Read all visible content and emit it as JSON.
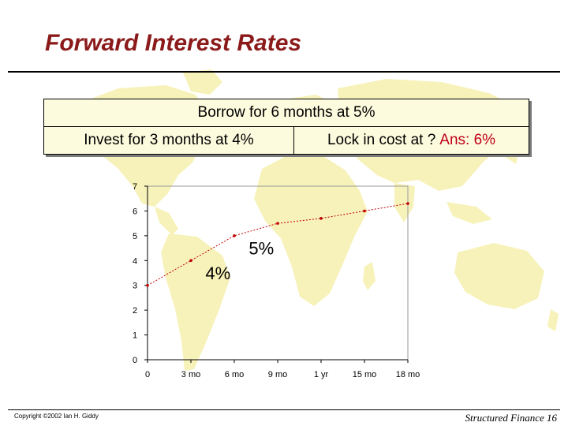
{
  "slide": {
    "title": "Forward Interest Rates",
    "borrow_text": "Borrow for 6 months at 5%",
    "invest_text": "Invest for 3 months at 4%",
    "lock_text": "Lock in cost at ?",
    "answer_text": "Ans: 6%",
    "copyright": "Copyright ©2002 Ian H. Giddy",
    "footer": "Structured Finance 16",
    "colors": {
      "title": "#8b1a1a",
      "answer": "#c0001a",
      "box_fill": "#fdfbde",
      "map": "#f7f2b9",
      "series": "#c00000"
    }
  },
  "chart_data": {
    "type": "line",
    "categories": [
      "0",
      "3 mo",
      "6 mo",
      "9 mo",
      "1 yr",
      "15 mo",
      "18 mo"
    ],
    "series": [
      {
        "x": [
          0,
          3,
          6,
          9,
          12,
          15,
          18
        ],
        "values": [
          3.0,
          4.0,
          5.0,
          5.5,
          5.7,
          6.0,
          6.3
        ]
      }
    ],
    "ylim": [
      0,
      7
    ],
    "yticks": [
      0,
      1,
      2,
      3,
      4,
      5,
      6,
      7
    ],
    "xlim": [
      0,
      18
    ],
    "grid": false,
    "annotations": [
      {
        "text": "4%",
        "x": 4,
        "y": 3.5
      },
      {
        "text": "5%",
        "x": 7,
        "y": 4.5
      }
    ]
  }
}
